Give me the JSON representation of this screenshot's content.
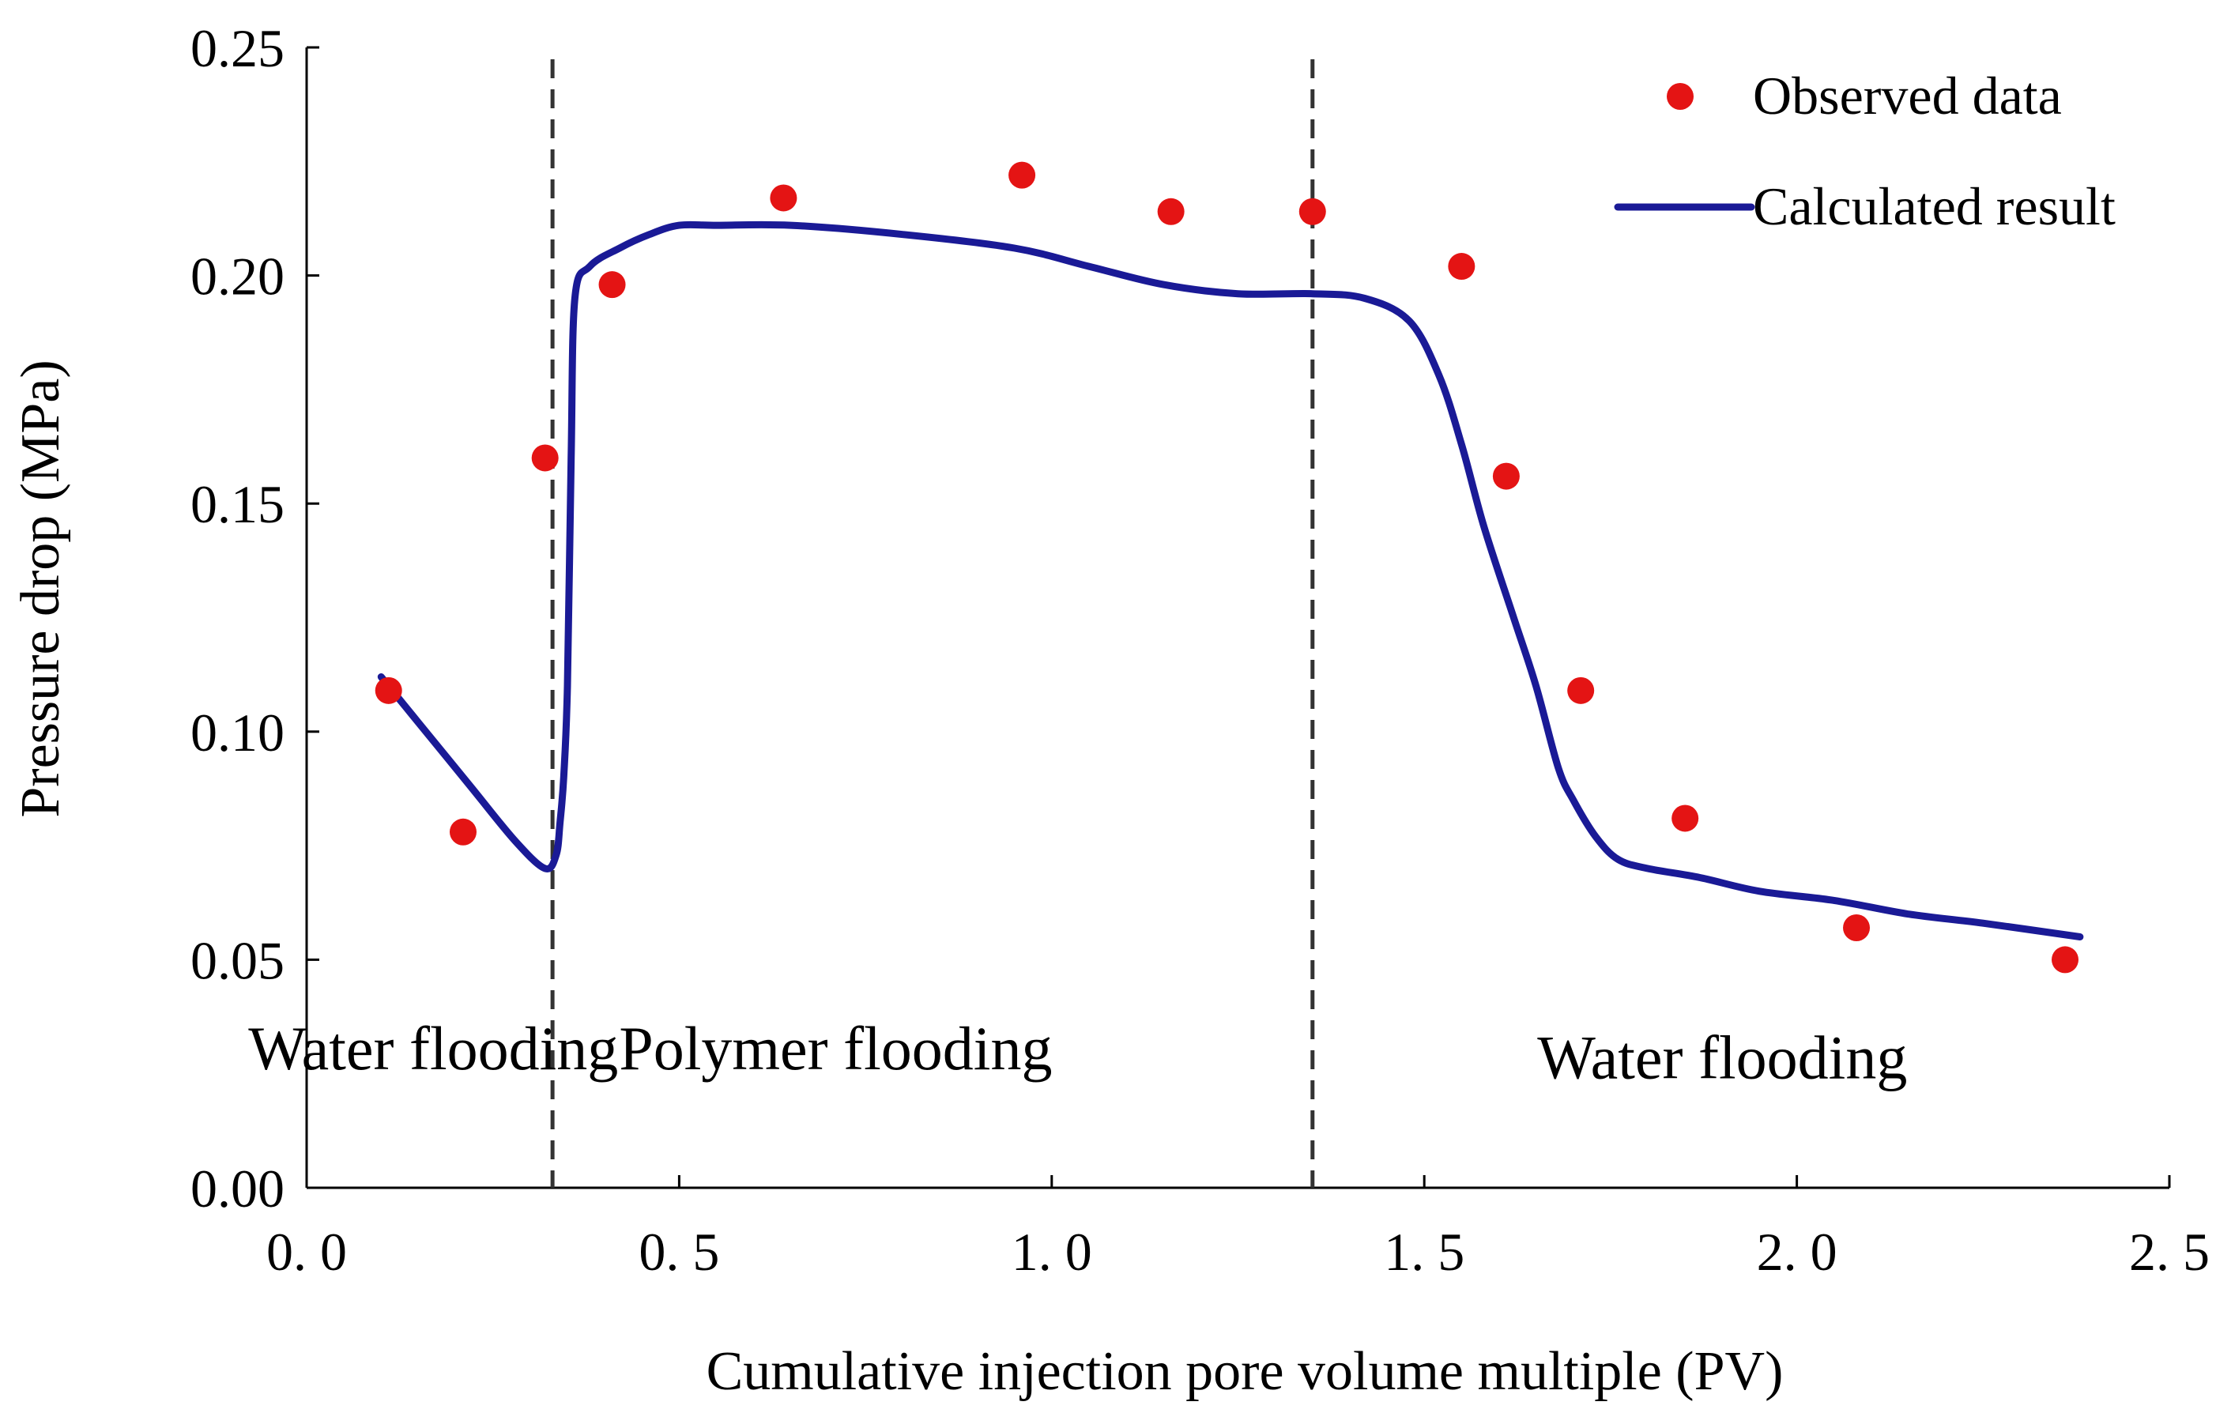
{
  "chart_data": {
    "type": "scatter",
    "title": "",
    "xlabel": "Cumulative injection pore volume multiple (PV)",
    "ylabel": "Pressure drop (MPa)",
    "xlim": [
      0.0,
      2.5
    ],
    "ylim": [
      0.0,
      0.25
    ],
    "x_ticks": [
      0.0,
      0.5,
      1.0,
      1.5,
      2.0,
      2.5
    ],
    "x_tick_labels": [
      "0. 0",
      "0. 5",
      "1. 0",
      "1. 5",
      "2. 0",
      "2. 5"
    ],
    "y_ticks": [
      0.0,
      0.05,
      0.1,
      0.15,
      0.2,
      0.25
    ],
    "y_tick_labels": [
      "0.00",
      "0.05",
      "0.10",
      "0.15",
      "0.20",
      "0.25"
    ],
    "grid": false,
    "legend_position": "top-right",
    "colors": {
      "observed": "#e41414",
      "calculated": "#1a1a96",
      "divider": "#333333"
    },
    "series": [
      {
        "name": "Observed data",
        "kind": "scatter",
        "x": [
          0.11,
          0.21,
          0.32,
          0.41,
          0.64,
          0.96,
          1.16,
          1.35,
          1.55,
          1.61,
          1.71,
          1.85,
          2.08,
          2.36
        ],
        "y": [
          0.109,
          0.078,
          0.16,
          0.198,
          0.217,
          0.222,
          0.214,
          0.214,
          0.202,
          0.156,
          0.109,
          0.081,
          0.057,
          0.05
        ]
      },
      {
        "name": "Calculated result",
        "kind": "line",
        "x": [
          0.1,
          0.15,
          0.22,
          0.28,
          0.32,
          0.335,
          0.34,
          0.345,
          0.35,
          0.355,
          0.36,
          0.38,
          0.42,
          0.46,
          0.5,
          0.55,
          0.65,
          0.8,
          0.95,
          1.05,
          1.15,
          1.25,
          1.35,
          1.42,
          1.48,
          1.52,
          1.55,
          1.58,
          1.62,
          1.65,
          1.68,
          1.7,
          1.73,
          1.76,
          1.8,
          1.87,
          1.95,
          2.05,
          2.15,
          2.25,
          2.38
        ],
        "y": [
          0.112,
          0.102,
          0.088,
          0.076,
          0.07,
          0.073,
          0.08,
          0.09,
          0.11,
          0.16,
          0.195,
          0.202,
          0.206,
          0.209,
          0.211,
          0.211,
          0.211,
          0.209,
          0.206,
          0.202,
          0.198,
          0.196,
          0.196,
          0.195,
          0.19,
          0.178,
          0.163,
          0.145,
          0.125,
          0.11,
          0.092,
          0.085,
          0.077,
          0.072,
          0.07,
          0.068,
          0.065,
          0.063,
          0.06,
          0.058,
          0.055
        ]
      }
    ],
    "dividers_x": [
      0.33,
      1.35
    ],
    "annotations": [
      {
        "text": "Water flooding",
        "x": 0.17,
        "y": 0.026
      },
      {
        "text": "Polymer flooding",
        "x": 0.71,
        "y": 0.026
      },
      {
        "text": "Water flooding",
        "x": 1.9,
        "y": 0.024
      }
    ]
  }
}
